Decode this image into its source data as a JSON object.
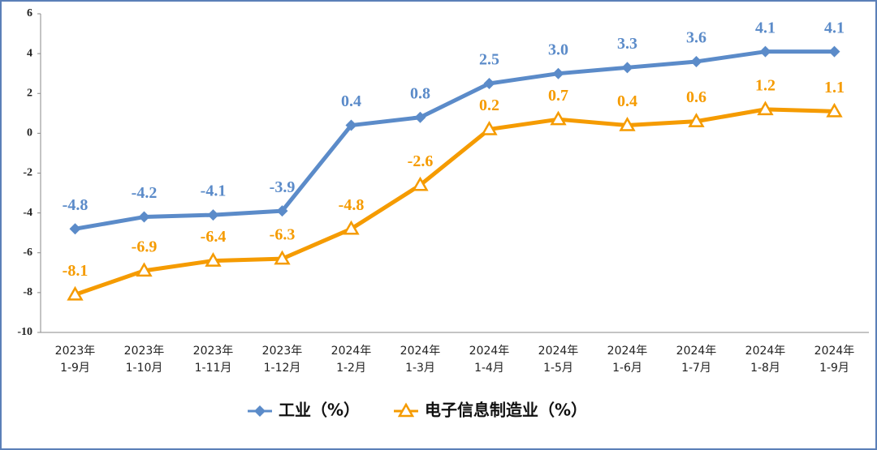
{
  "chart_data": {
    "type": "line",
    "categories": [
      [
        "2023年",
        "1-9月"
      ],
      [
        "2023年",
        "1-10月"
      ],
      [
        "2023年",
        "1-11月"
      ],
      [
        "2023年",
        "1-12月"
      ],
      [
        "2024年",
        "1-2月"
      ],
      [
        "2024年",
        "1-3月"
      ],
      [
        "2024年",
        "1-4月"
      ],
      [
        "2024年",
        "1-5月"
      ],
      [
        "2024年",
        "1-6月"
      ],
      [
        "2024年",
        "1-7月"
      ],
      [
        "2024年",
        "1-8月"
      ],
      [
        "2024年",
        "1-9月"
      ]
    ],
    "series": [
      {
        "name": "工业（%）",
        "color": "#5b8bc9",
        "marker": "diamond",
        "values": [
          -4.8,
          -4.2,
          -4.1,
          -3.9,
          0.4,
          0.8,
          2.5,
          3.0,
          3.3,
          3.6,
          4.1,
          4.1
        ],
        "value_labels": [
          "-4.8",
          "-4.2",
          "-4.1",
          "-3.9",
          "0.4",
          "0.8",
          "2.5",
          "3.0",
          "3.3",
          "3.6",
          "4.1",
          "4.1"
        ]
      },
      {
        "name": "电子信息制造业（%）",
        "color": "#f59b00",
        "marker": "triangle",
        "values": [
          -8.1,
          -6.9,
          -6.4,
          -6.3,
          -4.8,
          -2.6,
          0.2,
          0.7,
          0.4,
          0.6,
          1.2,
          1.1
        ],
        "value_labels": [
          "-8.1",
          "-6.9",
          "-6.4",
          "-6.3",
          "-4.8",
          "-2.6",
          "0.2",
          "0.7",
          "0.4",
          "0.6",
          "1.2",
          "1.1"
        ]
      }
    ],
    "ylim": [
      -10,
      6
    ],
    "yticks": [
      -10,
      -8,
      -6,
      -4,
      -2,
      0,
      2,
      4,
      6
    ],
    "grid": false,
    "legend": "bottom"
  }
}
